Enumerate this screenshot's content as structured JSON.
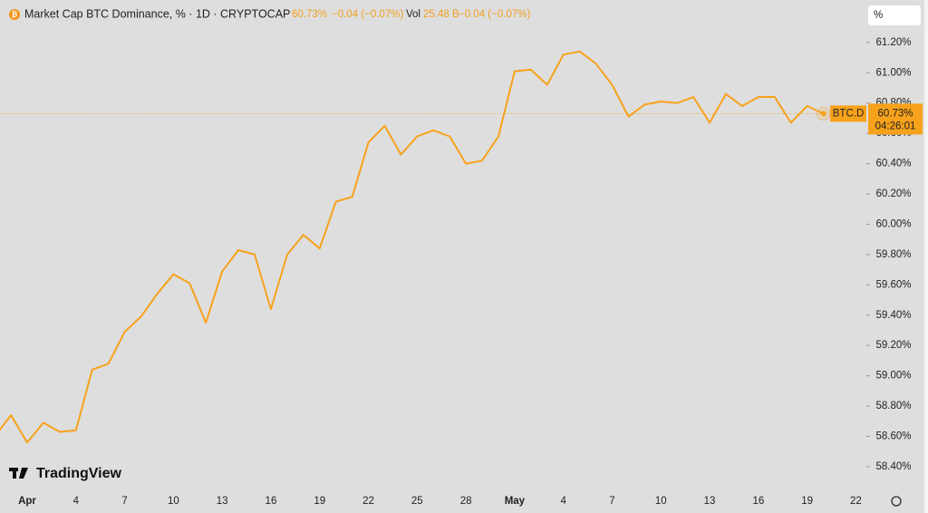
{
  "header": {
    "title": "Market Cap BTC Dominance, % · 1D · CRYPTOCAP",
    "last": "60.73%",
    "change": "−0.04 (−0.07%)",
    "vol_label": "Vol",
    "vol": "25.48 B",
    "vol_change": "−0.04 (−0.07%)",
    "scale_button": "%"
  },
  "price_tag": {
    "symbol": "BTC.D",
    "price": "60.73%",
    "countdown": "04:26:01"
  },
  "logo": "TradingView",
  "chart_data": {
    "type": "line",
    "categories": [
      null,
      null,
      "Apr",
      null,
      null,
      "4",
      null,
      null,
      "7",
      null,
      null,
      "10",
      null,
      null,
      "13",
      null,
      null,
      "16",
      null,
      null,
      "19",
      null,
      null,
      "22",
      null,
      null,
      "25",
      null,
      null,
      "28",
      null,
      null,
      "May",
      null,
      null,
      "4",
      null,
      null,
      "7",
      null,
      null,
      "10",
      null,
      null,
      "13",
      null,
      null,
      "16",
      null,
      null,
      "19",
      null,
      null,
      "22"
    ],
    "series": [
      {
        "name": "BTC.D",
        "color": "#f7a21b",
        "values": [
          58.6,
          58.74,
          58.56,
          58.69,
          58.63,
          58.64,
          59.04,
          59.08,
          59.29,
          59.39,
          59.54,
          59.67,
          59.61,
          59.35,
          59.69,
          59.83,
          59.8,
          59.44,
          59.8,
          59.93,
          59.84,
          60.15,
          60.18,
          60.54,
          60.65,
          60.46,
          60.58,
          60.62,
          60.58,
          60.4,
          60.42,
          60.58,
          61.01,
          61.02,
          60.92,
          61.12,
          61.14,
          61.06,
          60.92,
          60.71,
          60.79,
          60.81,
          60.8,
          60.84,
          60.67,
          60.86,
          60.78,
          60.84,
          60.84,
          60.67,
          60.78,
          60.73,
          null,
          null
        ]
      }
    ],
    "ylim": [
      58.25,
      61.48
    ],
    "yticks": [
      {
        "value": 58.4,
        "label": "58.40%"
      },
      {
        "value": 58.6,
        "label": "58.60%"
      },
      {
        "value": 58.8,
        "label": "58.80%"
      },
      {
        "value": 59.0,
        "label": "59.00%"
      },
      {
        "value": 59.2,
        "label": "59.20%"
      },
      {
        "value": 59.4,
        "label": "59.40%"
      },
      {
        "value": 59.6,
        "label": "59.60%"
      },
      {
        "value": 59.8,
        "label": "59.80%"
      },
      {
        "value": 60.0,
        "label": "60.00%"
      },
      {
        "value": 60.2,
        "label": "60.20%"
      },
      {
        "value": 60.4,
        "label": "60.40%"
      },
      {
        "value": 60.6,
        "label": "60.60%"
      },
      {
        "value": 60.8,
        "label": "60.80%"
      },
      {
        "value": 61.0,
        "label": "61.00%"
      },
      {
        "value": 61.2,
        "label": "61.20%"
      }
    ],
    "grid": false
  }
}
